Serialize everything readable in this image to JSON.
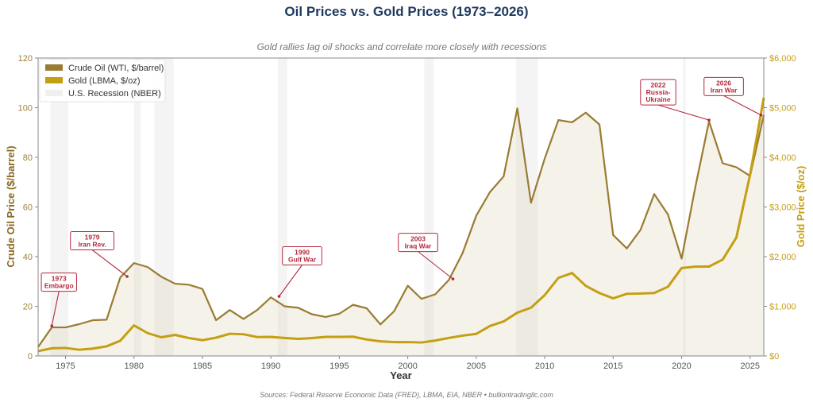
{
  "chart_data": {
    "type": "line",
    "title": "Oil Prices vs. Gold Prices (1973–2026)",
    "subtitle": "Gold rallies lag oil shocks and correlate more closely with recessions",
    "xlabel": "Year",
    "ylabel_left": "Crude Oil Price ($/barrel)",
    "ylabel_right": "Gold Price ($/oz)",
    "xlim": [
      1973,
      2026
    ],
    "ylim_left": [
      0,
      120
    ],
    "ylim_right": [
      0,
      6000
    ],
    "x_ticks": [
      "1975",
      "1980",
      "1985",
      "1990",
      "1995",
      "2000",
      "2005",
      "2010",
      "2015",
      "2020",
      "2025"
    ],
    "y_ticks_left": [
      "0",
      "20",
      "40",
      "60",
      "80",
      "100",
      "120"
    ],
    "y_ticks_right": [
      "$0",
      "$1,000",
      "$2,000",
      "$3,000",
      "$4,000",
      "$5,000",
      "$6,000"
    ],
    "legend_position": "top-left",
    "grid": false,
    "x": [
      1973,
      1974,
      1975,
      1976,
      1977,
      1978,
      1979,
      1980,
      1981,
      1982,
      1983,
      1984,
      1985,
      1986,
      1987,
      1988,
      1989,
      1990,
      1991,
      1992,
      1993,
      1994,
      1995,
      1996,
      1997,
      1998,
      1999,
      2000,
      2001,
      2002,
      2003,
      2004,
      2005,
      2006,
      2007,
      2008,
      2009,
      2010,
      2011,
      2012,
      2013,
      2014,
      2015,
      2016,
      2017,
      2018,
      2019,
      2020,
      2021,
      2022,
      2023,
      2024,
      2025,
      2026
    ],
    "series": [
      {
        "name": "Crude Oil (WTI, $/barrel)",
        "axis": "left",
        "color": "#9a7b32",
        "values": [
          3.6,
          11.5,
          11.5,
          12.8,
          14.4,
          14.6,
          31.6,
          37.4,
          35.8,
          31.9,
          29.1,
          28.7,
          27.0,
          14.4,
          18.5,
          14.9,
          18.5,
          23.6,
          20.0,
          19.4,
          16.8,
          15.7,
          17.0,
          20.6,
          19.2,
          12.7,
          18.0,
          28.3,
          23.0,
          24.8,
          30.6,
          41.4,
          56.5,
          66.0,
          72.3,
          99.7,
          61.7,
          79.5,
          95.0,
          94.1,
          98.0,
          93.2,
          48.7,
          43.3,
          50.8,
          65.2,
          57.0,
          39.2,
          68.0,
          94.5,
          77.6,
          76.0,
          72.5,
          97.0
        ]
      },
      {
        "name": "Gold (LBMA, $/oz)",
        "axis": "right",
        "color": "#c49f12",
        "values": [
          97,
          154,
          161,
          125,
          148,
          193,
          306,
          615,
          460,
          376,
          424,
          361,
          317,
          368,
          447,
          437,
          381,
          384,
          362,
          344,
          360,
          384,
          384,
          388,
          331,
          294,
          279,
          279,
          271,
          310,
          363,
          409,
          444,
          603,
          695,
          872,
          972,
          1225,
          1572,
          1669,
          1411,
          1266,
          1160,
          1251,
          1257,
          1268,
          1393,
          1770,
          1799,
          1800,
          1941,
          2386,
          3650,
          5200
        ]
      }
    ],
    "recession_label": "U.S. Recession (NBER)",
    "recessions": [
      [
        1973.9,
        1975.2
      ],
      [
        1980.0,
        1980.5
      ],
      [
        1981.5,
        1982.9
      ],
      [
        1990.5,
        1991.2
      ],
      [
        2001.2,
        2001.9
      ],
      [
        2007.9,
        2009.5
      ],
      [
        2020.1,
        2020.3
      ]
    ],
    "annotations": [
      {
        "lines": [
          "1973",
          "Embargo"
        ],
        "year": 1974,
        "oil": 11.5
      },
      {
        "lines": [
          "1979",
          "Iran Rev."
        ],
        "year": 1979.5,
        "oil": 32
      },
      {
        "lines": [
          "1990",
          "Gulf War"
        ],
        "year": 1990.6,
        "oil": 24
      },
      {
        "lines": [
          "2003",
          "Iraq War"
        ],
        "year": 2003.3,
        "oil": 31
      },
      {
        "lines": [
          "2022",
          "Russia-",
          "Ukraine"
        ],
        "year": 2022,
        "oil": 95
      },
      {
        "lines": [
          "2026",
          "Iran War"
        ],
        "year": 2025.8,
        "oil": 97
      }
    ],
    "annotation_color": "#b5283c",
    "source": "Sources: Federal Reserve Economic Data (FRED), LBMA, EIA, NBER  •  bulliontradingllc.com"
  }
}
